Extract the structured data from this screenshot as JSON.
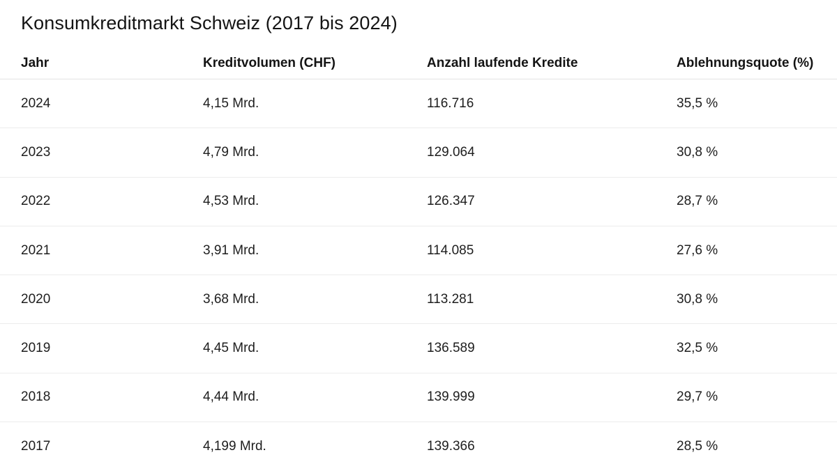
{
  "title": "Konsumkreditmarkt Schweiz (2017 bis 2024)",
  "table": {
    "headers": [
      "Jahr",
      "Kreditvolumen (CHF)",
      "Anzahl laufende Kredite",
      "Ablehnungsquote (%)"
    ],
    "rows": [
      [
        "2024",
        "4,15 Mrd.",
        "116.716",
        "35,5 %"
      ],
      [
        "2023",
        "4,79 Mrd.",
        "129.064",
        "30,8 %"
      ],
      [
        "2022",
        "4,53 Mrd.",
        "126.347",
        "28,7 %"
      ],
      [
        "2021",
        "3,91 Mrd.",
        "114.085",
        "27,6 %"
      ],
      [
        "2020",
        "3,68 Mrd.",
        "113.281",
        "30,8 %"
      ],
      [
        "2019",
        "4,45 Mrd.",
        "136.589",
        "32,5 %"
      ],
      [
        "2018",
        "4,44 Mrd.",
        "139.999",
        "29,7 %"
      ],
      [
        "2017",
        "4,199 Mrd.",
        "139.366",
        "28,5 %"
      ]
    ]
  }
}
